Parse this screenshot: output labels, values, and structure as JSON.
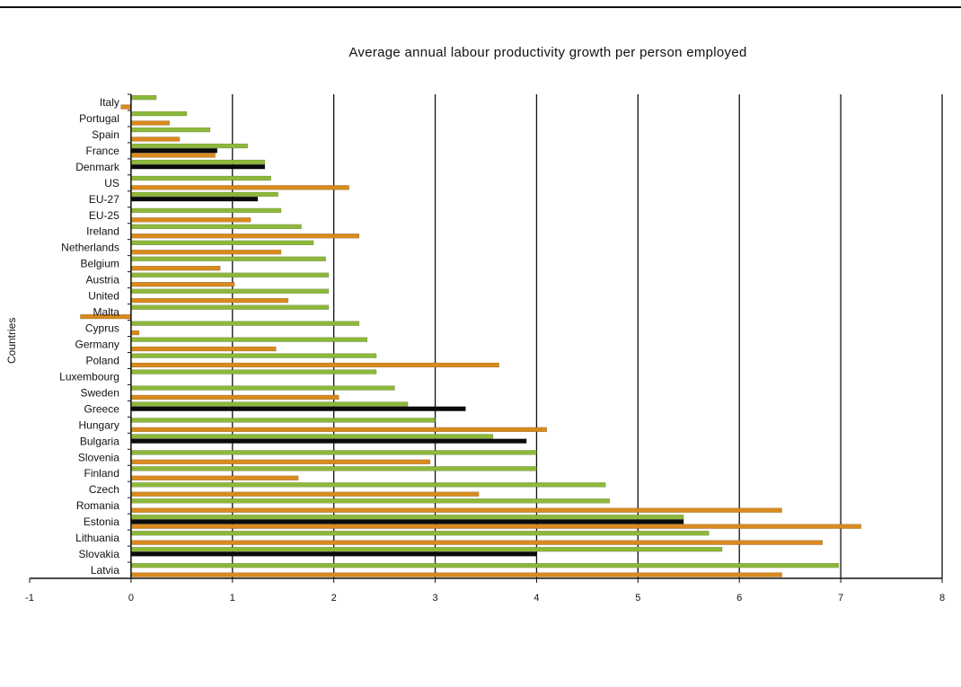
{
  "chart_data": {
    "type": "bar",
    "orientation": "horizontal",
    "title": "Average annual labour productivity growth per person employed",
    "xlabel": "",
    "ylabel": "Countries",
    "xlim": [
      -1,
      8
    ],
    "xticks": [
      "-1",
      "0",
      "1",
      "2",
      "3",
      "4",
      "5",
      "6",
      "7",
      "8"
    ],
    "grid": "vertical",
    "legend": "none",
    "categories": [
      "Italy",
      "Portugal",
      "Spain",
      "France",
      "Denmark",
      "US",
      "EU-27",
      "EU-25",
      "Ireland",
      "Netherlands",
      "Belgium",
      "Austria",
      "United",
      "Malta",
      "Cyprus",
      "Germany",
      "Poland",
      "Luxembourg",
      "Sweden",
      "Greece",
      "Hungary",
      "Bulgaria",
      "Slovenia",
      "Finland",
      "Czech",
      "Romania",
      "Estonia",
      "Lithuania",
      "Slovakia",
      "Latvia"
    ],
    "series": [
      {
        "color": "#8db83a",
        "values": [
          0.25,
          0.55,
          0.78,
          1.15,
          1.32,
          1.38,
          1.45,
          1.48,
          1.68,
          1.8,
          1.92,
          1.95,
          1.95,
          1.95,
          2.25,
          2.33,
          2.42,
          2.42,
          2.6,
          2.73,
          3.0,
          3.57,
          4.0,
          4.0,
          4.68,
          4.72,
          5.45,
          5.7,
          5.83,
          6.98
        ]
      },
      {
        "color": "#0a0a0a",
        "values": [
          0.0,
          0.0,
          0.0,
          0.85,
          1.32,
          0.0,
          1.25,
          0.0,
          0.0,
          0.0,
          0.0,
          0.0,
          0.0,
          0.0,
          0.0,
          0.0,
          0.0,
          0.0,
          0.0,
          3.3,
          0.0,
          3.9,
          0.0,
          0.0,
          0.0,
          0.0,
          5.45,
          0.0,
          4.0,
          0.0
        ]
      },
      {
        "color": "#d98a1e",
        "values": [
          -0.1,
          0.38,
          0.48,
          0.83,
          0.0,
          2.15,
          0.0,
          1.18,
          2.25,
          1.48,
          0.88,
          1.02,
          1.55,
          -0.5,
          0.08,
          1.43,
          3.63,
          0.0,
          2.05,
          0.0,
          4.1,
          0.0,
          2.95,
          1.65,
          3.43,
          6.42,
          7.2,
          6.82,
          0.0,
          6.42
        ]
      }
    ]
  }
}
